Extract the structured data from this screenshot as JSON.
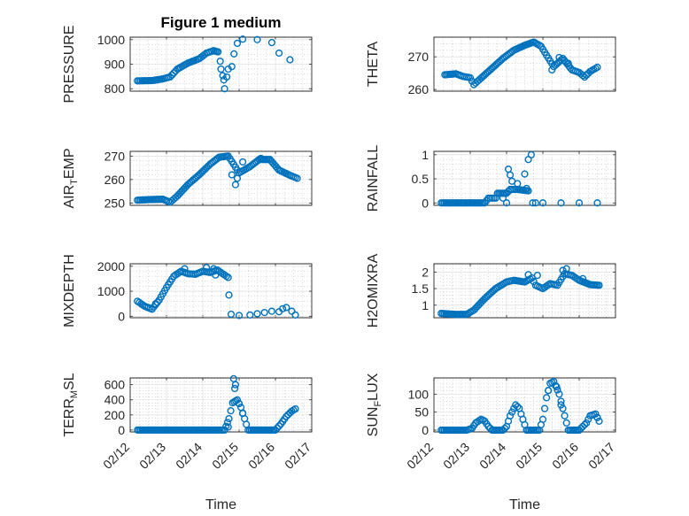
{
  "figure_title": "Figure 1 medium",
  "colors": {
    "marker": "#0072bd",
    "axis": "#262626",
    "background": "#ffffff"
  },
  "chart_data": [
    {
      "id": "pressure",
      "type": "scatter",
      "title": "Figure 1 medium",
      "ylabel": "PRESSURE",
      "ylabel_parts": [
        [
          "PRESSURE",
          ""
        ]
      ],
      "xlim": [
        0,
        5
      ],
      "ylim": [
        790,
        1010
      ],
      "yticks": [
        800,
        900,
        1000
      ],
      "ytick_labels": [
        "800",
        "900",
        "1000"
      ],
      "x_tick_labels_shown": false,
      "xlabel": "",
      "curve": [
        [
          0.2,
          832
        ],
        [
          0.6,
          833
        ],
        [
          0.9,
          840
        ],
        [
          1.1,
          848
        ],
        [
          1.3,
          880
        ],
        [
          1.6,
          905
        ],
        [
          1.9,
          922
        ],
        [
          2.1,
          945
        ],
        [
          2.3,
          955
        ],
        [
          2.42,
          950
        ]
      ],
      "extras": [
        [
          2.48,
          912
        ],
        [
          2.5,
          880
        ],
        [
          2.55,
          853
        ],
        [
          2.58,
          836
        ],
        [
          2.6,
          800
        ],
        [
          2.66,
          848
        ],
        [
          2.7,
          880
        ],
        [
          2.8,
          890
        ],
        [
          2.86,
          942
        ],
        [
          2.95,
          985
        ],
        [
          3.1,
          1002
        ],
        [
          3.5,
          1000
        ],
        [
          3.9,
          988
        ],
        [
          4.1,
          945
        ],
        [
          4.4,
          918
        ]
      ]
    },
    {
      "id": "theta",
      "type": "scatter",
      "ylabel": "THETA",
      "ylabel_parts": [
        [
          "THETA",
          ""
        ]
      ],
      "xlim": [
        0,
        5
      ],
      "ylim": [
        259.5,
        276
      ],
      "yticks": [
        260,
        270
      ],
      "ytick_labels": [
        "260",
        "270"
      ],
      "x_tick_labels_shown": false,
      "xlabel": "",
      "curve": [
        [
          0.3,
          264.5
        ],
        [
          0.6,
          264.8
        ],
        [
          0.8,
          264.0
        ],
        [
          1.0,
          263.6
        ],
        [
          1.1,
          261.5
        ],
        [
          1.3,
          263.5
        ],
        [
          1.6,
          266.5
        ],
        [
          1.9,
          269.5
        ],
        [
          2.2,
          272.0
        ],
        [
          2.5,
          273.5
        ],
        [
          2.75,
          274.5
        ],
        [
          2.95,
          273.2
        ],
        [
          3.1,
          270.5
        ],
        [
          3.3,
          267.0
        ],
        [
          3.55,
          269.5
        ],
        [
          3.8,
          266.0
        ],
        [
          4.0,
          265.2
        ],
        [
          4.15,
          263.8
        ],
        [
          4.3,
          265.5
        ],
        [
          4.5,
          266.8
        ]
      ],
      "extras": [
        [
          3.25,
          266.0
        ],
        [
          3.45,
          269.8
        ],
        [
          3.7,
          268.0
        ],
        [
          4.2,
          264.5
        ]
      ]
    },
    {
      "id": "air-temp",
      "type": "scatter",
      "ylabel": "AIR_TEMP",
      "ylabel_parts": [
        [
          "AIR",
          ""
        ],
        [
          "T",
          "sub"
        ],
        [
          "EMP",
          ""
        ]
      ],
      "xlim": [
        0,
        5
      ],
      "ylim": [
        249,
        272
      ],
      "yticks": [
        250,
        260,
        270
      ],
      "ytick_labels": [
        "250",
        "260",
        "270"
      ],
      "x_tick_labels_shown": false,
      "xlabel": "",
      "curve": [
        [
          0.2,
          251.2
        ],
        [
          0.6,
          251.5
        ],
        [
          0.9,
          251.6
        ],
        [
          1.1,
          250.3
        ],
        [
          1.3,
          253.0
        ],
        [
          1.6,
          258.0
        ],
        [
          1.9,
          262.0
        ],
        [
          2.2,
          266.5
        ],
        [
          2.45,
          269.5
        ],
        [
          2.7,
          270.0
        ],
        [
          2.85,
          266.5
        ],
        [
          3.0,
          262.8
        ],
        [
          3.3,
          265.5
        ],
        [
          3.55,
          268.5
        ],
        [
          3.85,
          268.5
        ],
        [
          4.1,
          264.0
        ],
        [
          4.4,
          261.8
        ],
        [
          4.6,
          260.5
        ]
      ],
      "extras": [
        [
          2.8,
          262.0
        ],
        [
          2.9,
          257.8
        ],
        [
          2.95,
          260.5
        ],
        [
          3.1,
          267.5
        ],
        [
          3.6,
          269.0
        ]
      ]
    },
    {
      "id": "rainfall",
      "type": "scatter",
      "ylabel": "RAINFALL",
      "ylabel_parts": [
        [
          "RAINFALL",
          ""
        ]
      ],
      "xlim": [
        0,
        5
      ],
      "ylim": [
        -0.05,
        1.07
      ],
      "yticks": [
        0,
        0.5,
        1
      ],
      "ytick_labels": [
        "0",
        "0.5",
        "1"
      ],
      "x_tick_labels_shown": false,
      "xlabel": "",
      "curve": [
        [
          0.2,
          0
        ],
        [
          1.4,
          0
        ],
        [
          1.5,
          0.1
        ],
        [
          1.7,
          0.1
        ],
        [
          1.75,
          0.2
        ],
        [
          2.0,
          0.2
        ],
        [
          2.1,
          0.28
        ],
        [
          2.3,
          0.28
        ],
        [
          2.6,
          0.25
        ]
      ],
      "extras": [
        [
          1.9,
          0.1
        ],
        [
          2.0,
          0.0
        ],
        [
          2.05,
          0.7
        ],
        [
          2.1,
          0.58
        ],
        [
          2.15,
          0.45
        ],
        [
          2.3,
          0.4
        ],
        [
          2.5,
          0.6
        ],
        [
          2.55,
          0.3
        ],
        [
          2.6,
          0.9
        ],
        [
          2.68,
          1.0
        ],
        [
          2.72,
          0.0
        ],
        [
          2.8,
          0.0
        ],
        [
          3.0,
          0.0
        ],
        [
          3.5,
          0.0
        ],
        [
          4.0,
          0.0
        ],
        [
          4.5,
          0.0
        ]
      ]
    },
    {
      "id": "mixdepth",
      "type": "scatter",
      "ylabel": "MIXDEPTH",
      "ylabel_parts": [
        [
          "MIXDEPTH",
          ""
        ]
      ],
      "xlim": [
        0,
        5
      ],
      "ylim": [
        -60,
        2100
      ],
      "yticks": [
        0,
        1000,
        2000
      ],
      "ytick_labels": [
        "0",
        "1000",
        "2000"
      ],
      "x_tick_labels_shown": false,
      "xlabel": "",
      "curve": [
        [
          0.2,
          600
        ],
        [
          0.4,
          400
        ],
        [
          0.6,
          280
        ],
        [
          0.8,
          650
        ],
        [
          1.0,
          1150
        ],
        [
          1.2,
          1600
        ],
        [
          1.4,
          1800
        ],
        [
          1.6,
          1700
        ],
        [
          1.8,
          1680
        ],
        [
          2.0,
          1800
        ],
        [
          2.2,
          1750
        ],
        [
          2.4,
          1850
        ],
        [
          2.55,
          1700
        ],
        [
          2.7,
          1550
        ]
      ],
      "extras": [
        [
          0.5,
          350
        ],
        [
          0.7,
          500
        ],
        [
          1.5,
          1900
        ],
        [
          2.1,
          1950
        ],
        [
          2.3,
          1900
        ],
        [
          2.35,
          1650
        ],
        [
          2.72,
          850
        ],
        [
          2.78,
          80
        ],
        [
          3.0,
          30
        ],
        [
          3.3,
          50
        ],
        [
          3.5,
          100
        ],
        [
          3.7,
          150
        ],
        [
          3.9,
          200
        ],
        [
          4.1,
          180
        ],
        [
          4.2,
          300
        ],
        [
          4.3,
          350
        ],
        [
          4.45,
          200
        ],
        [
          4.55,
          50
        ]
      ]
    },
    {
      "id": "h2omixra",
      "type": "scatter",
      "ylabel": "H2OMIXRA",
      "ylabel_parts": [
        [
          "H2OMIXRA",
          ""
        ]
      ],
      "xlim": [
        0,
        5
      ],
      "ylim": [
        0.62,
        2.25
      ],
      "yticks": [
        1,
        1.5,
        2
      ],
      "ytick_labels": [
        "1",
        "1.5",
        "2"
      ],
      "x_tick_labels_shown": false,
      "xlabel": "",
      "curve": [
        [
          0.2,
          0.75
        ],
        [
          0.6,
          0.72
        ],
        [
          0.9,
          0.72
        ],
        [
          1.1,
          0.85
        ],
        [
          1.4,
          1.2
        ],
        [
          1.7,
          1.5
        ],
        [
          2.0,
          1.7
        ],
        [
          2.2,
          1.75
        ],
        [
          2.5,
          1.7
        ],
        [
          2.7,
          1.82
        ],
        [
          2.8,
          1.6
        ],
        [
          3.0,
          1.5
        ],
        [
          3.2,
          1.65
        ],
        [
          3.4,
          1.6
        ],
        [
          3.6,
          1.95
        ],
        [
          3.8,
          1.9
        ],
        [
          4.0,
          1.75
        ],
        [
          4.3,
          1.62
        ],
        [
          4.55,
          1.6
        ]
      ],
      "extras": [
        [
          2.6,
          1.92
        ],
        [
          2.85,
          1.9
        ],
        [
          3.55,
          2.05
        ],
        [
          3.65,
          2.1
        ],
        [
          4.1,
          1.8
        ]
      ]
    },
    {
      "id": "terr-msl",
      "type": "scatter",
      "ylabel": "TERR_MSL",
      "ylabel_parts": [
        [
          "TERR",
          ""
        ],
        [
          "M",
          "sub"
        ],
        [
          "SL",
          ""
        ]
      ],
      "xlim": [
        0,
        5
      ],
      "ylim": [
        -25,
        690
      ],
      "yticks": [
        0,
        200,
        400,
        600
      ],
      "ytick_labels": [
        "0",
        "200",
        "400",
        "600"
      ],
      "x_tick_labels_shown": true,
      "xlabel": "Time",
      "xtick_labels": [
        "02/12",
        "02/13",
        "02/14",
        "02/15",
        "02/16",
        "02/17"
      ],
      "curve": [
        [
          0.2,
          0
        ],
        [
          1.0,
          0
        ],
        [
          2.0,
          0
        ],
        [
          2.6,
          0
        ],
        [
          2.72,
          150
        ],
        [
          2.82,
          360
        ],
        [
          2.95,
          400
        ],
        [
          3.05,
          300
        ],
        [
          3.15,
          150
        ],
        [
          3.25,
          0
        ],
        [
          3.6,
          0
        ],
        [
          4.0,
          0
        ],
        [
          4.15,
          80
        ],
        [
          4.3,
          180
        ],
        [
          4.45,
          250
        ],
        [
          4.55,
          280
        ]
      ],
      "extras": [
        [
          2.7,
          40
        ],
        [
          2.85,
          680
        ],
        [
          2.9,
          600
        ],
        [
          2.88,
          550
        ],
        [
          3.0,
          350
        ],
        [
          3.1,
          220
        ]
      ]
    },
    {
      "id": "sun-flux",
      "type": "scatter",
      "ylabel": "SUN_FLUX",
      "ylabel_parts": [
        [
          "SUN",
          ""
        ],
        [
          "F",
          "sub"
        ],
        [
          "LUX",
          ""
        ]
      ],
      "xlim": [
        0,
        5
      ],
      "ylim": [
        -5,
        145
      ],
      "yticks": [
        0,
        50,
        100
      ],
      "ytick_labels": [
        "0",
        "50",
        "100"
      ],
      "x_tick_labels_shown": true,
      "xlabel": "Time",
      "xtick_labels": [
        "02/12",
        "02/13",
        "02/14",
        "02/15",
        "02/16",
        "02/17"
      ],
      "curve": [
        [
          0.2,
          0
        ],
        [
          0.9,
          0
        ],
        [
          1.05,
          5
        ],
        [
          1.15,
          20
        ],
        [
          1.3,
          30
        ],
        [
          1.4,
          25
        ],
        [
          1.5,
          10
        ],
        [
          1.6,
          0
        ],
        [
          1.9,
          0
        ],
        [
          2.0,
          10
        ],
        [
          2.1,
          40
        ],
        [
          2.25,
          70
        ],
        [
          2.35,
          60
        ],
        [
          2.45,
          30
        ],
        [
          2.55,
          0
        ],
        [
          2.9,
          0
        ],
        [
          3.0,
          30
        ],
        [
          3.1,
          90
        ],
        [
          3.2,
          130
        ],
        [
          3.3,
          135
        ],
        [
          3.45,
          100
        ],
        [
          3.6,
          40
        ],
        [
          3.7,
          0
        ],
        [
          4.0,
          0
        ],
        [
          4.2,
          20
        ],
        [
          4.3,
          40
        ],
        [
          4.45,
          45
        ],
        [
          4.55,
          25
        ]
      ],
      "extras": [
        [
          3.15,
          110
        ],
        [
          3.38,
          120
        ],
        [
          3.5,
          70
        ],
        [
          4.5,
          35
        ]
      ]
    }
  ]
}
